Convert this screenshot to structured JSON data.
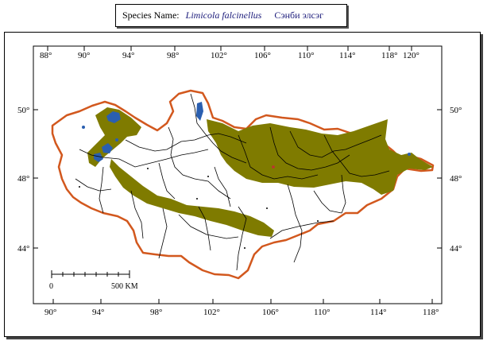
{
  "header": {
    "label": "Species Name:",
    "species_latin": "Limicola falcinellus",
    "species_native": "Сэнби элсэг"
  },
  "colors": {
    "border": "#d2581e",
    "range": "#7f7b00",
    "water": "#2a5fb0",
    "lines": "#000000"
  },
  "map": {
    "top_longitudes": [
      "88°",
      "90°",
      "94°",
      "98°",
      "102°",
      "106°",
      "110°",
      "114°",
      "118°",
      "120°"
    ],
    "bottom_longitudes": [
      "90°",
      "94°",
      "98°",
      "102°",
      "106°",
      "110°",
      "114°",
      "118°"
    ],
    "left_latitudes": [
      "50°",
      "48°",
      "44°"
    ],
    "right_latitudes": [
      "50°",
      "48°",
      "44°"
    ],
    "scale_start": "0",
    "scale_end": "500 KM"
  }
}
